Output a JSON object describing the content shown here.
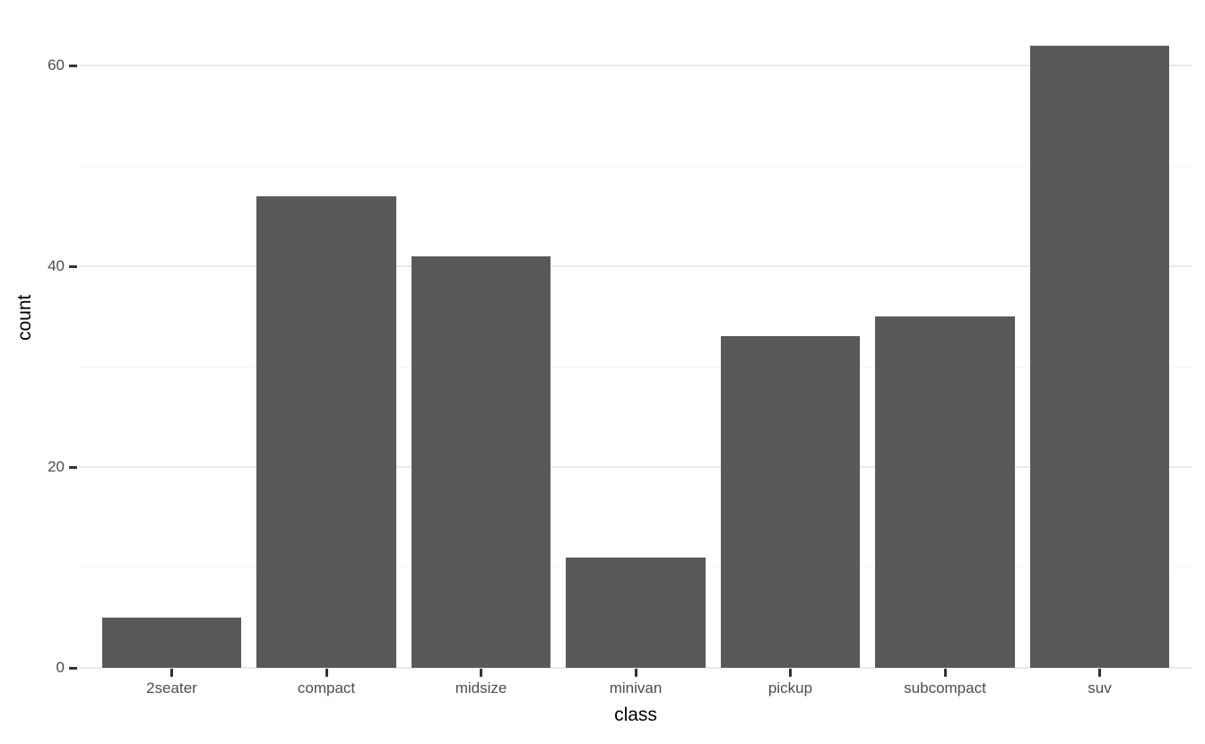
{
  "chart_data": {
    "type": "bar",
    "title": "",
    "xlabel": "class",
    "ylabel": "count",
    "categories": [
      "2seater",
      "compact",
      "midsize",
      "minivan",
      "pickup",
      "subcompact",
      "suv"
    ],
    "values": [
      5,
      47,
      41,
      11,
      33,
      35,
      62
    ],
    "ylim": [
      0,
      65.1
    ],
    "y_major_ticks": [
      0,
      20,
      40,
      60
    ],
    "y_minor_gridlines": [
      10,
      30,
      50
    ],
    "grid": "horizontal-only",
    "legend": "none",
    "colors": {
      "bar_fill": "#595959",
      "background": "#ffffff",
      "gridline_major": "#e9e9e9",
      "gridline_minor": "#f4f4f4",
      "tick_mark": "#333333",
      "tick_label": "#4d4d4d",
      "axis_title": "#000000"
    }
  }
}
